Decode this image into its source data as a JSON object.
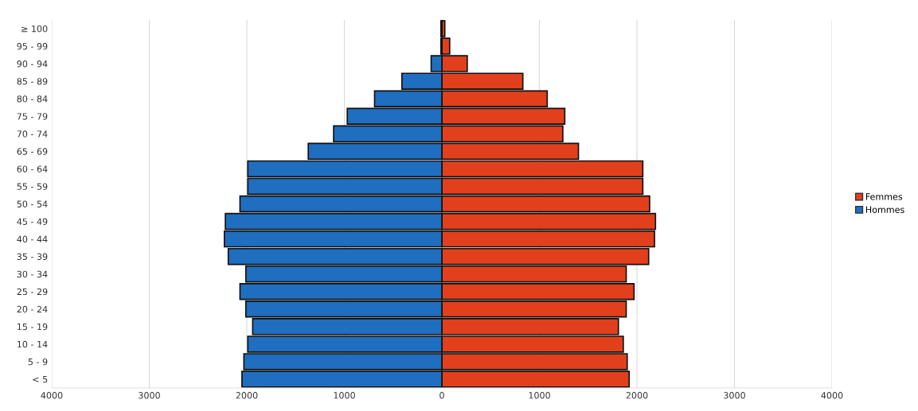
{
  "chart_data": {
    "type": "bar",
    "orientation": "horizontal",
    "stacked": true,
    "categories": [
      "≥ 100",
      "95 - 99",
      "90 - 94",
      "85 - 89",
      "80 - 84",
      "75 - 79",
      "70 - 74",
      "65 - 69",
      "60 - 64",
      "55 - 59",
      "50 - 54",
      "45 - 49",
      "40 - 44",
      "35 - 39",
      "30 - 34",
      "25 - 29",
      "20 - 24",
      "15 - 19",
      "10 - 14",
      "5 - 9",
      "< 5"
    ],
    "series": [
      {
        "name": "Femmes",
        "color": "#e2401c",
        "values": [
          30,
          80,
          260,
          830,
          1080,
          1260,
          1240,
          1400,
          2060,
          2060,
          2130,
          2190,
          2180,
          2120,
          1890,
          1970,
          1890,
          1810,
          1860,
          1900,
          1920
        ]
      },
      {
        "name": "Hommes",
        "color": "#1f6ebf",
        "values": [
          -10,
          -10,
          -110,
          -410,
          -690,
          -970,
          -1110,
          -1370,
          -1990,
          -1990,
          -2070,
          -2220,
          -2230,
          -2190,
          -2010,
          -2070,
          -2010,
          -1940,
          -1990,
          -2030,
          -2050
        ]
      }
    ],
    "xlim": [
      -4000,
      4000
    ],
    "xticks": [
      {
        "value": -4000,
        "label": "4000"
      },
      {
        "value": -3000,
        "label": "3000"
      },
      {
        "value": -2000,
        "label": "2000"
      },
      {
        "value": -1000,
        "label": "1000"
      },
      0,
      1000,
      2000,
      3000,
      4000
    ],
    "grid": "x",
    "legend": "right"
  }
}
